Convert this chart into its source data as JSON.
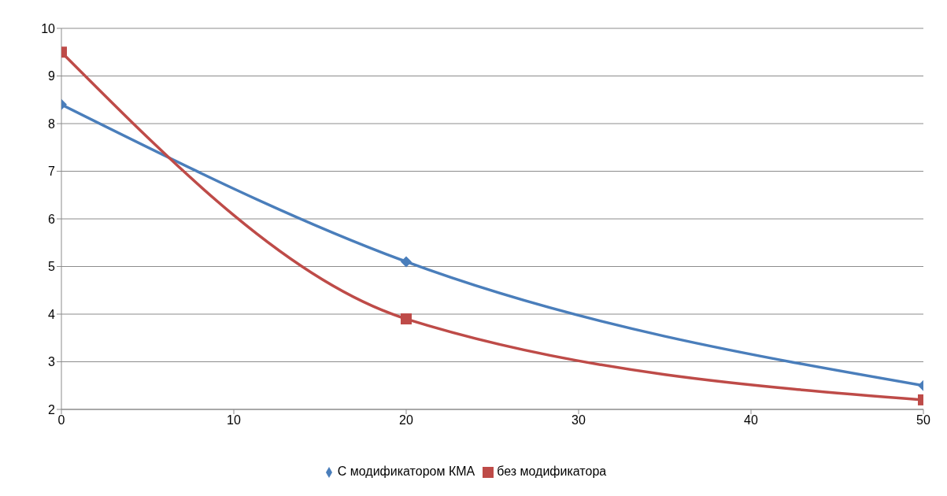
{
  "chart_data": {
    "type": "line",
    "x": [
      0,
      20,
      50
    ],
    "xlim": [
      0,
      50
    ],
    "xticks": [
      0,
      10,
      20,
      30,
      40,
      50
    ],
    "ylim": [
      2,
      10
    ],
    "yticks": [
      2,
      3,
      4,
      5,
      6,
      7,
      8,
      9,
      10
    ],
    "grid": "y",
    "legend": "bottom",
    "line_style": "solid",
    "series": [
      {
        "name": "С модификатором КМА",
        "color": "#4a7ebb",
        "marker": "diamond",
        "values": [
          8.4,
          5.1,
          2.5
        ]
      },
      {
        "name": "без модификатора",
        "color": "#be4b48",
        "marker": "square",
        "values": [
          9.5,
          3.9,
          2.2
        ]
      }
    ]
  }
}
